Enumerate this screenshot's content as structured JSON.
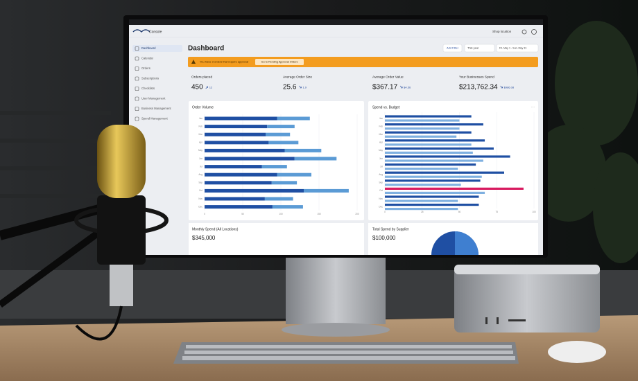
{
  "header": {
    "app": "Console",
    "location": "Shop location"
  },
  "sidebar": {
    "items": [
      "Dashboard",
      "Calendar",
      "Orders",
      "Subscriptions",
      "Checklists",
      "User Management",
      "Business Management",
      "Spend Management"
    ]
  },
  "page": {
    "title": "Dashboard",
    "add_filter": "Add Filter",
    "period": "This year",
    "date_range": "Fri, May 1 - Sun, May 31"
  },
  "banner": {
    "text": "You have 3 orders that require approval",
    "button": "Go to Pending Approval Orders"
  },
  "kpis": [
    {
      "label": "Orders placed",
      "value": "450",
      "delta": "12"
    },
    {
      "label": "Average Order Size",
      "value": "25.6",
      "delta": "1.9"
    },
    {
      "label": "Average Order Value",
      "value": "$367.17",
      "delta": "$4.56"
    },
    {
      "label": "Your Businesses Spend",
      "value": "$213,762.34",
      "delta": "$986.08"
    }
  ],
  "chart_data": [
    {
      "type": "stacked-bar",
      "title": "Order Volume",
      "categories": [
        "Jan",
        "Feb",
        "Mar",
        "Apr",
        "May",
        "Jun",
        "Jul",
        "Aug",
        "Sep",
        "Oct",
        "Nov",
        "Dec"
      ],
      "series": [
        {
          "color": "#1f4fa3",
          "values": [
            95,
            82,
            80,
            84,
            105,
            118,
            75,
            95,
            88,
            130,
            79,
            89
          ]
        },
        {
          "color": "#5b9bd5",
          "values": [
            43,
            36,
            32,
            39,
            48,
            55,
            33,
            45,
            33,
            59,
            37,
            40
          ]
        }
      ],
      "xlim": [
        0,
        200
      ],
      "xticks": [
        0,
        50,
        100,
        150,
        200
      ],
      "grid": true
    },
    {
      "type": "grouped-bar",
      "title": "Spend vs. Budget",
      "categories": [
        "Jan",
        "Feb",
        "Mar",
        "Apr",
        "May",
        "Jun",
        "Jul",
        "Aug",
        "Sep",
        "Oct",
        "Nov",
        "Dec"
      ],
      "series": [
        {
          "color": "#1f4fa3",
          "values": [
            58,
            66,
            58,
            67,
            73,
            84,
            61,
            80,
            64,
            93,
            63,
            63
          ],
          "highlight": {
            "index": 9,
            "color": "#d81b60"
          }
        },
        {
          "color": "#7fb0e0",
          "values": [
            50,
            50,
            48,
            58,
            59,
            66,
            49,
            65,
            51,
            67,
            49,
            49
          ]
        }
      ],
      "xlim": [
        0,
        100
      ],
      "xticks": [
        0,
        25,
        50,
        75,
        100
      ],
      "grid": true
    }
  ],
  "bottom_cards": [
    {
      "title": "Monthly Spend (All Locations)",
      "value": "$345,000"
    },
    {
      "title": "Total Spend by Supplier",
      "value": "$100,000"
    }
  ]
}
